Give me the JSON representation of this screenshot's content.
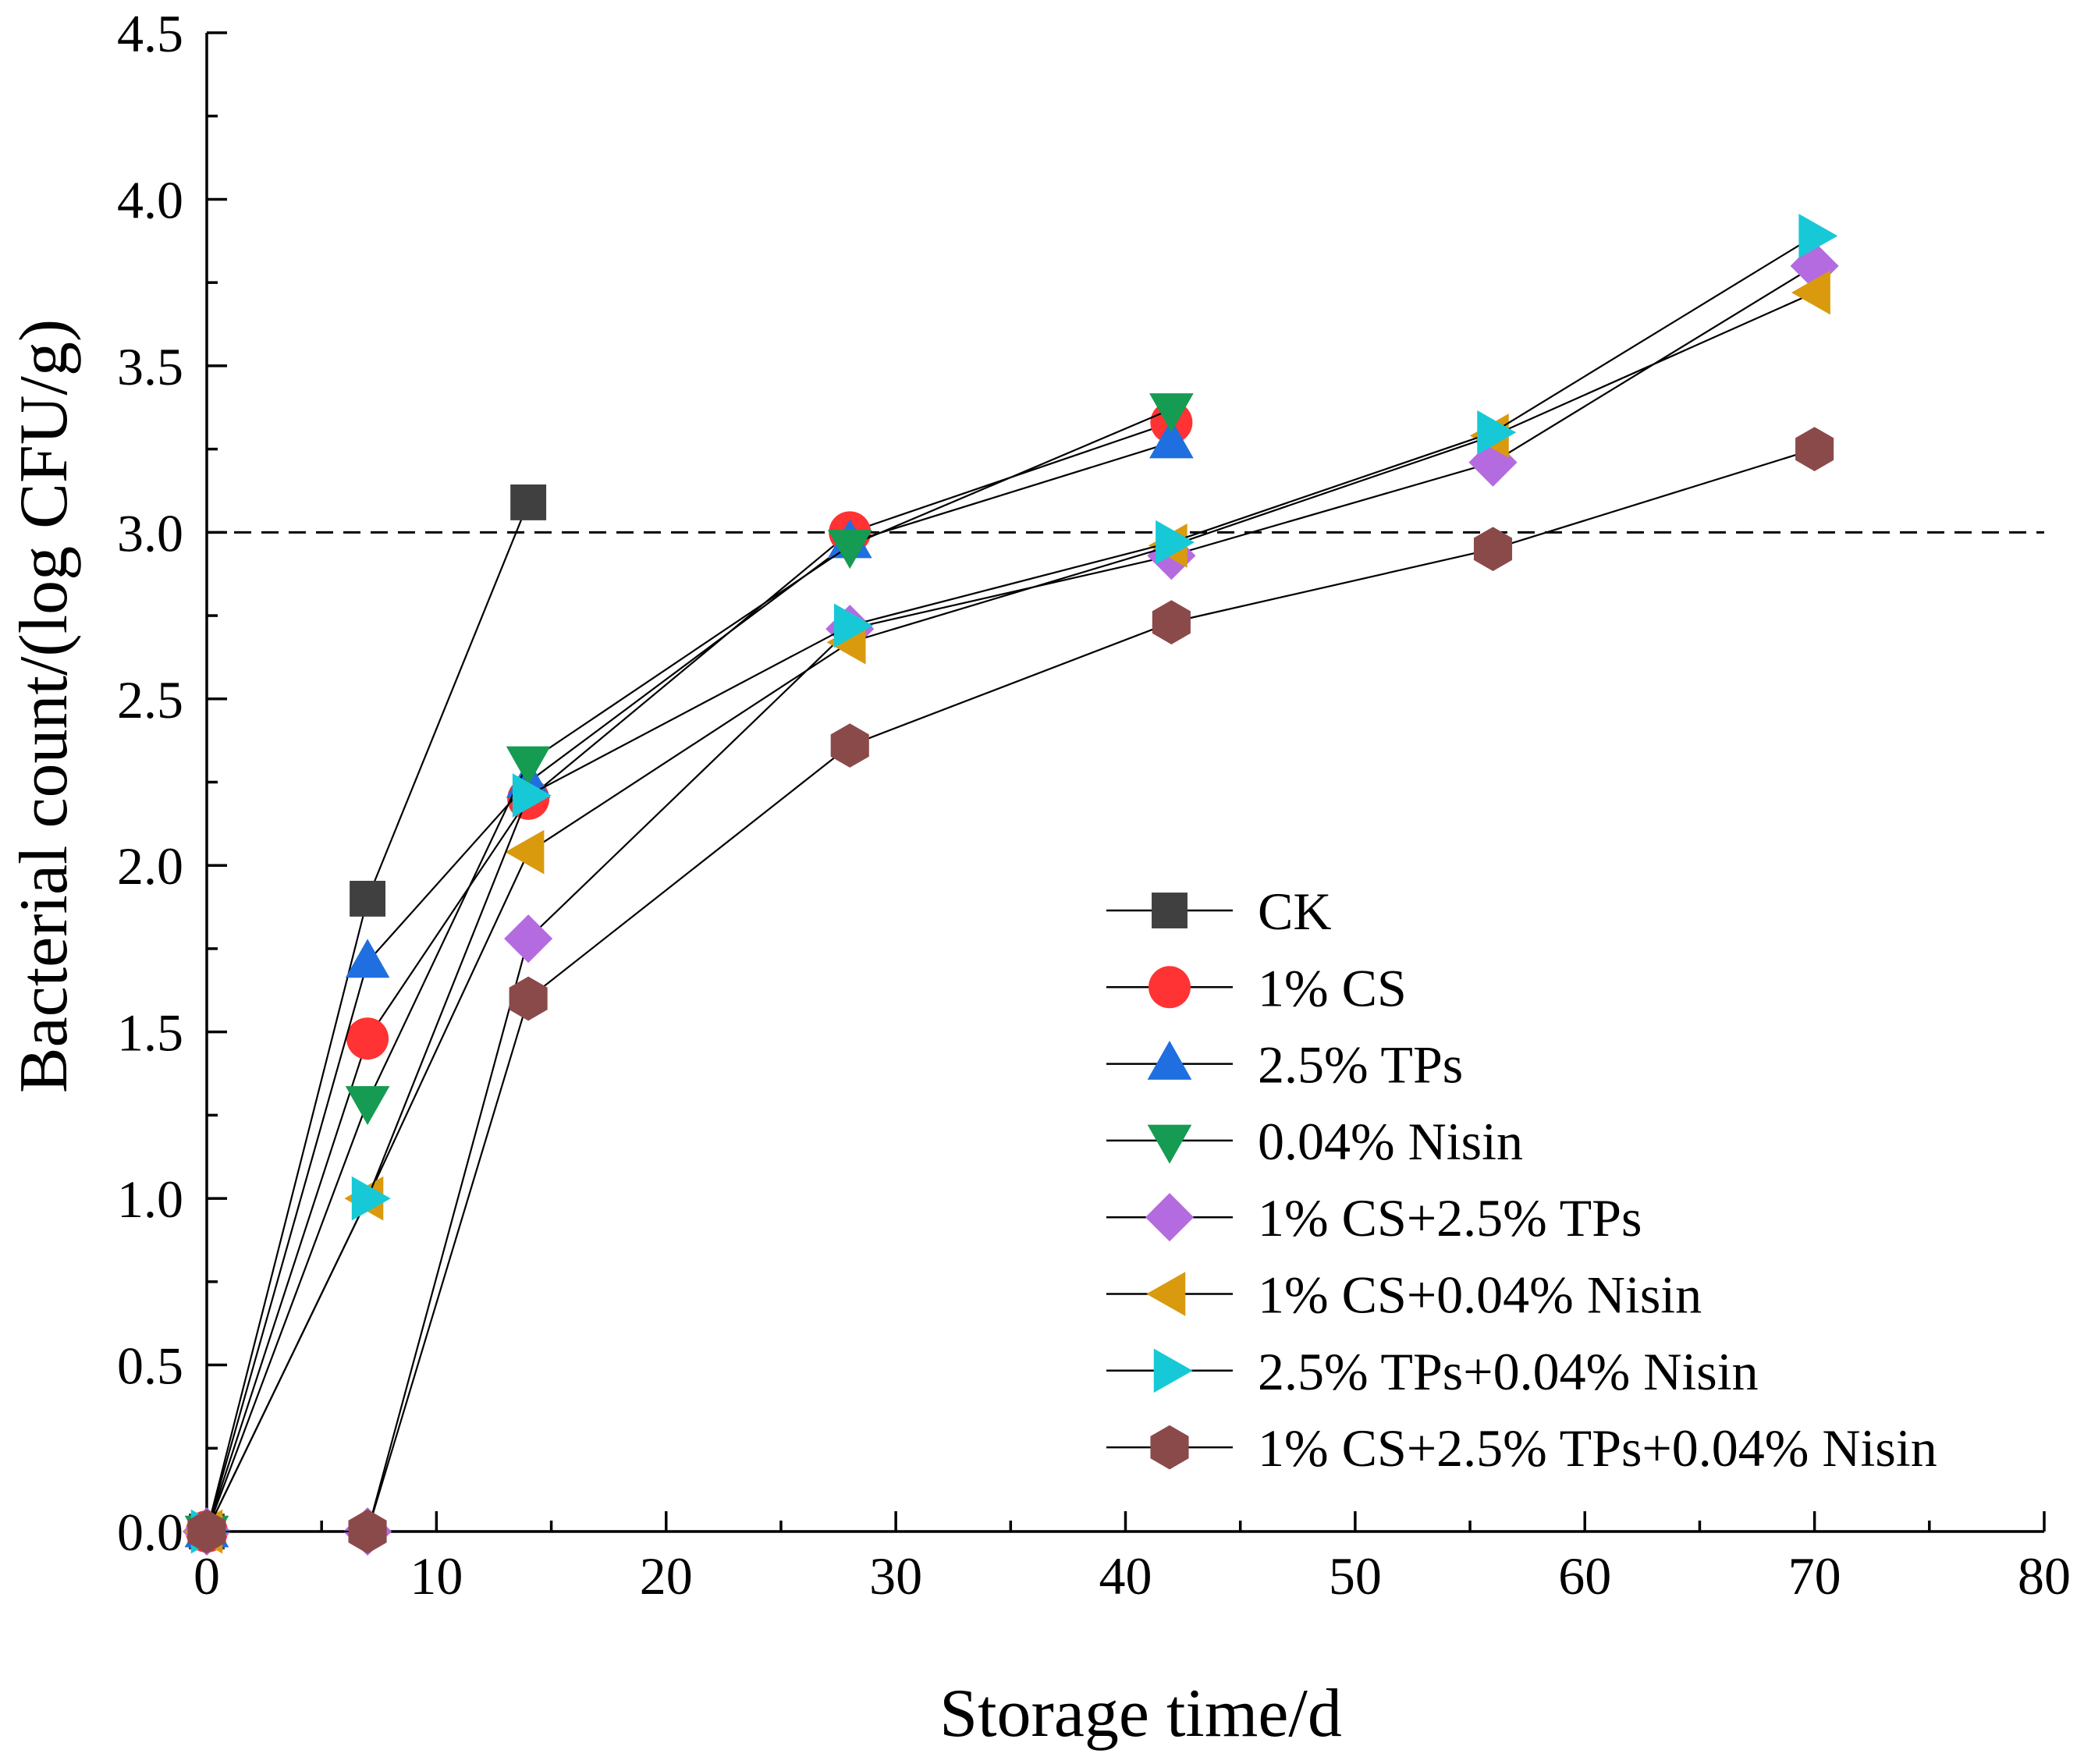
{
  "chart_data": {
    "type": "line",
    "title": "",
    "xlabel": "Storage time/d",
    "ylabel": "Bacterial count/(log CFU/g)",
    "xlim": [
      0,
      80
    ],
    "ylim": [
      0,
      4.5
    ],
    "x_ticks": [
      0,
      10,
      20,
      30,
      40,
      50,
      60,
      70,
      80
    ],
    "y_ticks": [
      0.0,
      0.5,
      1.0,
      1.5,
      2.0,
      2.5,
      3.0,
      3.5,
      4.0,
      4.5
    ],
    "x_tick_labels": [
      "0",
      "10",
      "20",
      "30",
      "40",
      "50",
      "60",
      "70",
      "80"
    ],
    "y_tick_labels": [
      "0.0",
      "0.5",
      "1.0",
      "1.5",
      "2.0",
      "2.5",
      "3.0",
      "3.5",
      "4.0",
      "4.5"
    ],
    "grid": false,
    "legend_position": "bottom-right",
    "reference_line": {
      "orientation": "horizontal",
      "y": 3.0,
      "style": "dashed"
    },
    "series": [
      {
        "name": "CK",
        "marker": "square",
        "color": "#404040",
        "x": [
          0,
          7,
          14
        ],
        "y": [
          0.0,
          1.9,
          3.09
        ]
      },
      {
        "name": "1% CS",
        "marker": "circle",
        "color": "#ff3333",
        "x": [
          0,
          7,
          14,
          28,
          42
        ],
        "y": [
          0.0,
          1.48,
          2.2,
          3.0,
          3.33
        ]
      },
      {
        "name": "2.5% TPs",
        "marker": "triangle-up",
        "color": "#1f6fe0",
        "x": [
          0,
          7,
          14,
          28,
          42
        ],
        "y": [
          0.0,
          1.71,
          2.25,
          2.97,
          3.27
        ]
      },
      {
        "name": "0.04% Nisin",
        "marker": "triangle-down",
        "color": "#169b52",
        "x": [
          0,
          7,
          14,
          28,
          42
        ],
        "y": [
          0.0,
          1.29,
          2.31,
          2.96,
          3.37
        ]
      },
      {
        "name": "1% CS+2.5% TPs",
        "marker": "diamond",
        "color": "#b46be0",
        "x": [
          0,
          7,
          14,
          28,
          42,
          56,
          70
        ],
        "y": [
          0.0,
          0.0,
          1.78,
          2.71,
          2.93,
          3.21,
          3.8
        ]
      },
      {
        "name": "1% CS+0.04% Nisin",
        "marker": "triangle-left",
        "color": "#d99a0e",
        "x": [
          0,
          7,
          14,
          28,
          42,
          56,
          70
        ],
        "y": [
          0.0,
          1.0,
          2.04,
          2.67,
          2.96,
          3.29,
          3.72
        ]
      },
      {
        "name": "2.5% TPs+0.04% Nisin",
        "marker": "triangle-right",
        "color": "#17c9d6",
        "x": [
          0,
          7,
          14,
          28,
          42,
          56,
          70
        ],
        "y": [
          0.0,
          1.0,
          2.21,
          2.72,
          2.97,
          3.3,
          3.89
        ]
      },
      {
        "name": "1% CS+2.5% TPs+0.04% Nisin",
        "marker": "hexagon",
        "color": "#8b4a4a",
        "x": [
          0,
          7,
          14,
          28,
          42,
          56,
          70
        ],
        "y": [
          0.0,
          0.0,
          1.6,
          2.36,
          2.73,
          2.95,
          3.25
        ]
      }
    ]
  }
}
